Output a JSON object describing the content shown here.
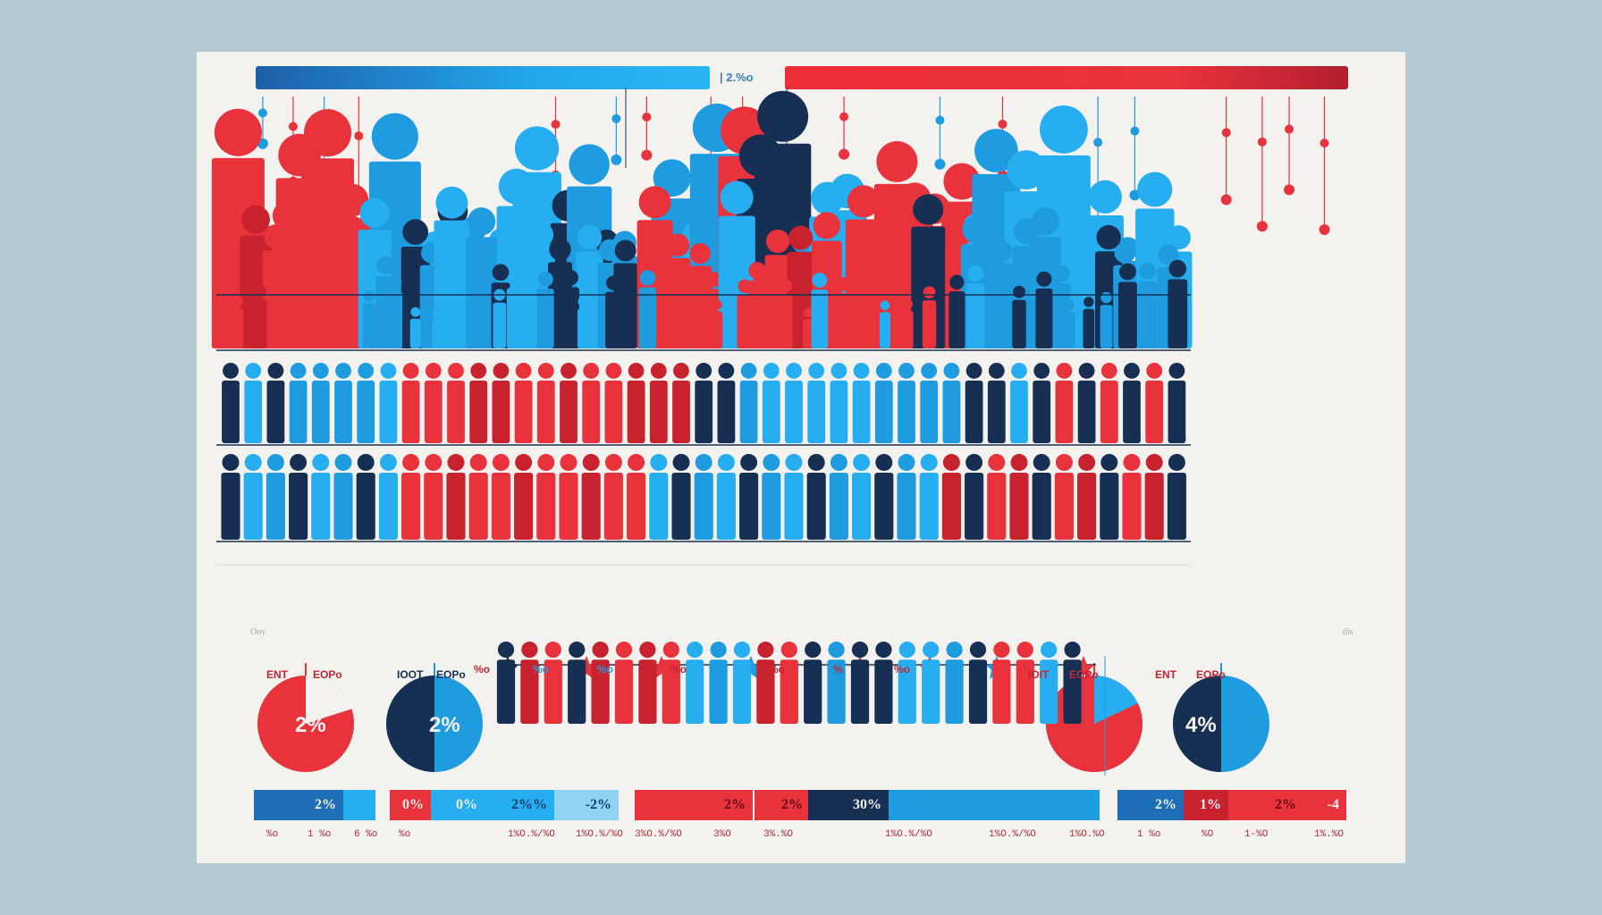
{
  "colors": {
    "red": "#e8323c",
    "dark_red": "#c8222e",
    "blue": "#1f9be0",
    "light_blue": "#27aef0",
    "navy": "#172f52",
    "background": "#f4f2ee",
    "frame": "#b4c9d1"
  },
  "header": {
    "center_label": "| 2.%o"
  },
  "footnotes": {
    "left": "Ooy",
    "right": "dis"
  },
  "pies": [
    {
      "label_left": "ENT",
      "label_right": "EOPo",
      "value_text": "2%",
      "share": 0.8,
      "main_color": "#e8323c",
      "other_color": "#f4f2ee"
    },
    {
      "label_left": "IOOT",
      "label_right": "EOPo",
      "value_text": "2%",
      "share": 0.5,
      "main_color": "#172f52",
      "other_color": "#1f9be0"
    },
    {
      "label_left": "IOIT",
      "label_right": "EOPo",
      "value_text": "",
      "share": 0.82,
      "main_color": "#e8323c",
      "other_color": "#27aef0"
    },
    {
      "label_left": "ENT",
      "label_right": "EOPo",
      "value_text": "4%",
      "share": 0.5,
      "main_color": "#172f52",
      "other_color": "#1f9be0"
    }
  ],
  "marker_labels": [
    "%o",
    "%o",
    "%o",
    "%o",
    "%o",
    "%",
    "%o"
  ],
  "stat_bars": [
    {
      "text": "2%"
    },
    {
      "text": "0%"
    },
    {
      "text": "0%"
    },
    {
      "text": "2%%"
    },
    {
      "text": "-2%"
    },
    {
      "text": "2%"
    },
    {
      "text": "2%"
    },
    {
      "text": "30%"
    },
    {
      "text": "2%"
    },
    {
      "text": "1%"
    },
    {
      "text": "2%"
    },
    {
      "text": "-4"
    }
  ],
  "small_numbers": [
    "%o",
    "1 %o",
    "6 %o",
    "%o",
    "1%O.%/%O",
    "1%O.%/%O",
    "3%O.%/%O",
    "3%O",
    "3%.%O",
    "1%O.%/%O",
    "1%O.%/%O",
    "1%O.%O",
    "1 %o",
    "%O",
    "1-%O",
    "1%.%O"
  ]
}
